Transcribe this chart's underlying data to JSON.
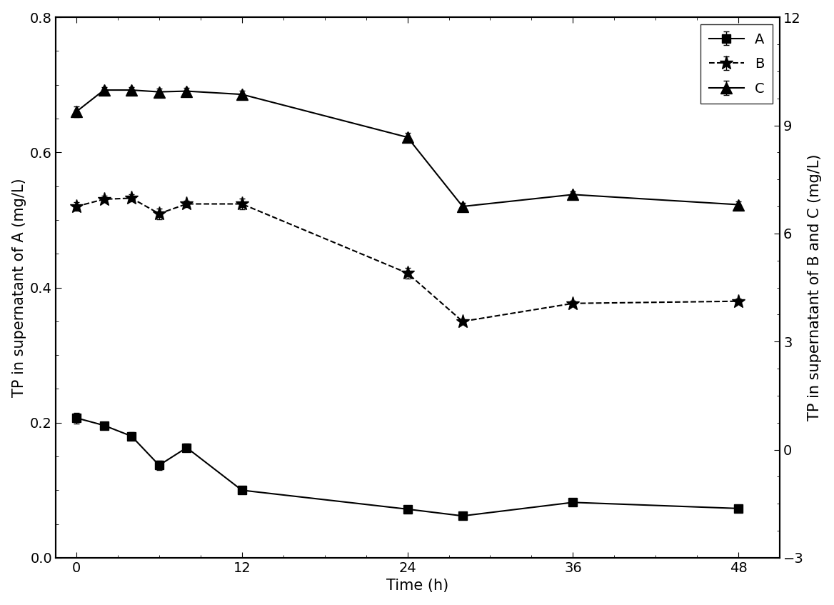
{
  "A_x": [
    0,
    2,
    4,
    6,
    8,
    12,
    24,
    28,
    36,
    48
  ],
  "A_y": [
    0.207,
    0.196,
    0.18,
    0.137,
    0.163,
    0.1,
    0.072,
    0.062,
    0.082,
    0.073
  ],
  "A_yerr": [
    0.008,
    0.005,
    0.006,
    0.007,
    0.006,
    0.004,
    0.003,
    0.003,
    0.004,
    0.003
  ],
  "B_x": [
    0,
    2,
    4,
    6,
    8,
    12,
    24,
    28,
    36,
    48
  ],
  "B_y": [
    6.75,
    6.95,
    6.98,
    6.55,
    6.82,
    6.82,
    4.9,
    3.56,
    4.06,
    4.12
  ],
  "B_yerr": [
    0.12,
    0.09,
    0.1,
    0.15,
    0.09,
    0.15,
    0.15,
    0.06,
    0.07,
    0.07
  ],
  "C_x": [
    0,
    2,
    4,
    6,
    8,
    12,
    24,
    28,
    36,
    48
  ],
  "C_y": [
    9.38,
    9.98,
    9.98,
    9.93,
    9.95,
    9.86,
    8.67,
    6.75,
    7.08,
    6.8
  ],
  "C_yerr": [
    0.15,
    0.09,
    0.09,
    0.1,
    0.09,
    0.1,
    0.12,
    0.1,
    0.09,
    0.09
  ],
  "left_ylim": [
    0.0,
    0.8
  ],
  "left_yticks": [
    0.0,
    0.2,
    0.4,
    0.6,
    0.8
  ],
  "right_ylim": [
    -3,
    12
  ],
  "right_yticks": [
    -3,
    0,
    3,
    6,
    9,
    12
  ],
  "xlim": [
    -1.5,
    51
  ],
  "xticks": [
    0,
    12,
    24,
    36,
    48
  ],
  "xlabel": "Time (h)",
  "ylabel_left": "TP in supernatant of A (mg/L)",
  "ylabel_right": "TP in supernatant of B and C (mg/L)",
  "color": "#000000",
  "marker_A": "s",
  "marker_B": "*",
  "marker_C": "^",
  "linestyle_A": "-",
  "linestyle_B": "-",
  "linestyle_C": "-",
  "markersize_A": 8,
  "markersize_B": 14,
  "markersize_C": 11,
  "linewidth": 1.5,
  "legend_labels": [
    "A",
    "B",
    "C"
  ],
  "capsize": 3,
  "elinewidth": 1.0,
  "fontsize_ticks": 14,
  "fontsize_label": 15,
  "fontsize_legend": 14
}
